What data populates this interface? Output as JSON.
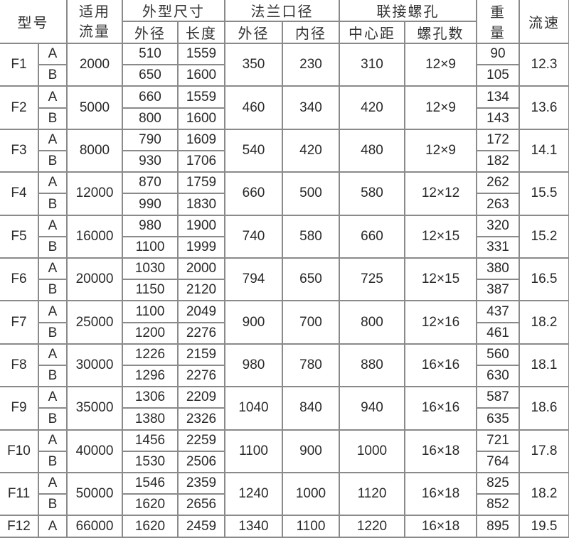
{
  "headers": {
    "model": "型号",
    "flow": "适用流量",
    "flow_line1": "适用",
    "flow_line2": "流量",
    "dimensions": "外型尺寸",
    "outer_diameter": "外径",
    "length": "长度",
    "flange": "法兰口径",
    "flange_outer": "外径",
    "flange_inner": "内径",
    "bolts": "联接螺孔",
    "center_distance": "中心距",
    "hole_count": "螺孔数",
    "weight_line1": "重",
    "weight_line2": "量",
    "speed": "流速"
  },
  "rows": [
    {
      "model": "F1",
      "flow": "2000",
      "flange_od": "350",
      "flange_id": "230",
      "center": "310",
      "holes": "12×9",
      "speed": "12.3",
      "variants": [
        {
          "type": "A",
          "od": "510",
          "length": "1559",
          "weight": "90"
        },
        {
          "type": "B",
          "od": "650",
          "length": "1600",
          "weight": "105"
        }
      ]
    },
    {
      "model": "F2",
      "flow": "5000",
      "flange_od": "460",
      "flange_id": "340",
      "center": "420",
      "holes": "12×9",
      "speed": "13.6",
      "variants": [
        {
          "type": "A",
          "od": "660",
          "length": "1559",
          "weight": "134"
        },
        {
          "type": "B",
          "od": "800",
          "length": "1600",
          "weight": "143"
        }
      ]
    },
    {
      "model": "F3",
      "flow": "8000",
      "flange_od": "540",
      "flange_id": "420",
      "center": "480",
      "holes": "12×9",
      "speed": "14.1",
      "variants": [
        {
          "type": "A",
          "od": "790",
          "length": "1609",
          "weight": "172"
        },
        {
          "type": "B",
          "od": "930",
          "length": "1706",
          "weight": "182"
        }
      ]
    },
    {
      "model": "F4",
      "flow": "12000",
      "flange_od": "660",
      "flange_id": "500",
      "center": "580",
      "holes": "12×12",
      "speed": "15.5",
      "variants": [
        {
          "type": "A",
          "od": "870",
          "length": "1759",
          "weight": "262"
        },
        {
          "type": "B",
          "od": "990",
          "length": "1830",
          "weight": "263"
        }
      ]
    },
    {
      "model": "F5",
      "flow": "16000",
      "flange_od": "740",
      "flange_id": "580",
      "center": "660",
      "holes": "12×15",
      "speed": "15.2",
      "variants": [
        {
          "type": "A",
          "od": "980",
          "length": "1900",
          "weight": "320"
        },
        {
          "type": "B",
          "od": "1100",
          "length": "1999",
          "weight": "331"
        }
      ]
    },
    {
      "model": "F6",
      "flow": "20000",
      "flange_od": "794",
      "flange_id": "650",
      "center": "725",
      "holes": "12×15",
      "speed": "16.5",
      "variants": [
        {
          "type": "A",
          "od": "1030",
          "length": "2000",
          "weight": "380"
        },
        {
          "type": "B",
          "od": "1150",
          "length": "2120",
          "weight": "387"
        }
      ]
    },
    {
      "model": "F7",
      "flow": "25000",
      "flange_od": "900",
      "flange_id": "700",
      "center": "800",
      "holes": "12×16",
      "speed": "18.2",
      "variants": [
        {
          "type": "A",
          "od": "1100",
          "length": "2049",
          "weight": "437"
        },
        {
          "type": "B",
          "od": "1200",
          "length": "2276",
          "weight": "461"
        }
      ]
    },
    {
      "model": "F8",
      "flow": "30000",
      "flange_od": "980",
      "flange_id": "780",
      "center": "880",
      "holes": "16×16",
      "speed": "18.1",
      "variants": [
        {
          "type": "A",
          "od": "1226",
          "length": "2159",
          "weight": "560"
        },
        {
          "type": "B",
          "od": "1296",
          "length": "2276",
          "weight": "630"
        }
      ]
    },
    {
      "model": "F9",
      "flow": "35000",
      "flange_od": "1040",
      "flange_id": "840",
      "center": "940",
      "holes": "16×16",
      "speed": "18.6",
      "variants": [
        {
          "type": "A",
          "od": "1306",
          "length": "2209",
          "weight": "587"
        },
        {
          "type": "B",
          "od": "1380",
          "length": "2326",
          "weight": "635"
        }
      ]
    },
    {
      "model": "F10",
      "flow": "40000",
      "flange_od": "1100",
      "flange_id": "900",
      "center": "1000",
      "holes": "16×18",
      "speed": "17.8",
      "variants": [
        {
          "type": "A",
          "od": "1456",
          "length": "2259",
          "weight": "721"
        },
        {
          "type": "B",
          "od": "1530",
          "length": "2506",
          "weight": "764"
        }
      ]
    },
    {
      "model": "F11",
      "flow": "50000",
      "flange_od": "1240",
      "flange_id": "1000",
      "center": "1120",
      "holes": "16×18",
      "speed": "18.2",
      "variants": [
        {
          "type": "A",
          "od": "1546",
          "length": "2359",
          "weight": "825"
        },
        {
          "type": "B",
          "od": "1620",
          "length": "2656",
          "weight": "852"
        }
      ]
    },
    {
      "model": "F12",
      "flow": "66000",
      "flange_od": "1340",
      "flange_id": "1100",
      "center": "1220",
      "holes": "16×18",
      "speed": "19.5",
      "variants": [
        {
          "type": "A",
          "od": "1620",
          "length": "2459",
          "weight": "895"
        }
      ]
    }
  ]
}
